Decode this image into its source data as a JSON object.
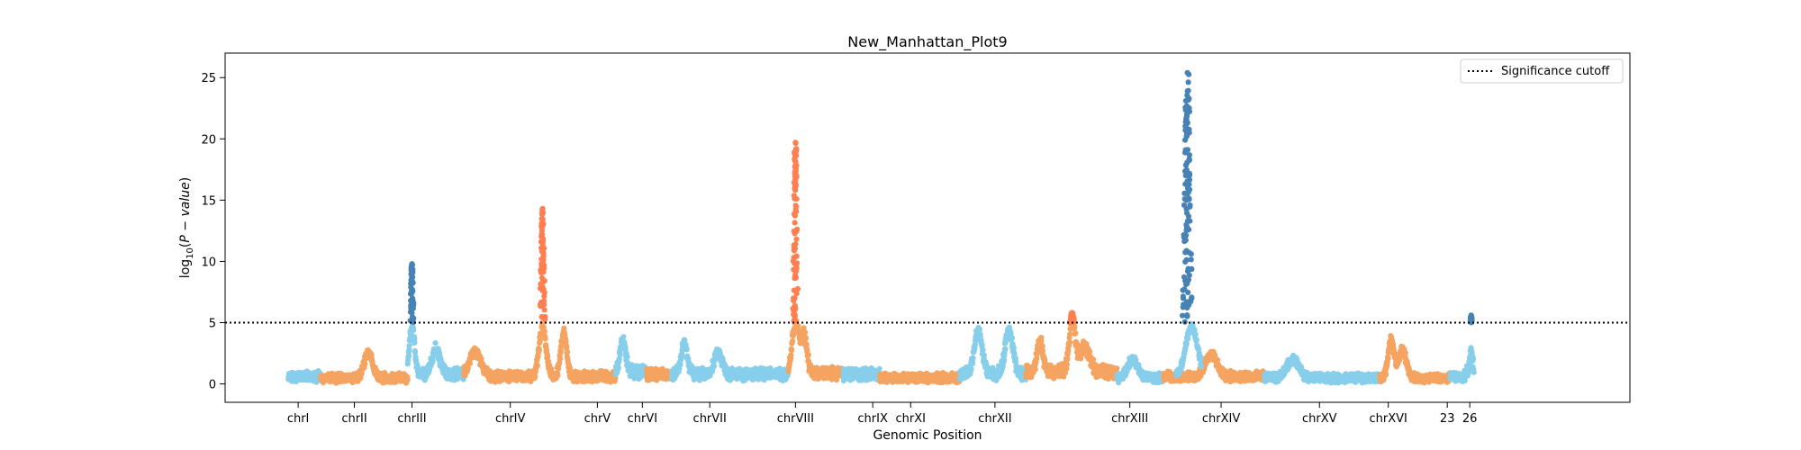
{
  "chart_data": {
    "type": "scatter",
    "title": "New_Manhattan_Plot9",
    "xlabel": "Genomic Position",
    "ylabel": "log10(P - value)",
    "ylim": [
      -1.5,
      27
    ],
    "yticks": [
      0,
      5,
      10,
      15,
      20,
      25
    ],
    "grid": false,
    "legend": {
      "position": "top-right",
      "entries": [
        "Significance cutoff"
      ]
    },
    "significance_cutoff": 5,
    "colors": {
      "light_blue": "#87ceeb",
      "sandy_orange": "#f4a460",
      "steel_blue": "#4682b4",
      "coral": "#ff7f50",
      "cutoff_line": "#000000"
    },
    "x_range": [
      0,
      1000
    ],
    "chromosomes": [
      {
        "label": "chrI",
        "start": 45,
        "end": 68,
        "center": 52,
        "color": "light_blue",
        "base": 0.6,
        "peaks": []
      },
      {
        "label": "chrII",
        "start": 68,
        "end": 130,
        "center": 92,
        "color": "sandy_orange",
        "base": 0.5,
        "peaks": [
          {
            "pos": 102,
            "height": 2.2,
            "width": 4
          }
        ]
      },
      {
        "label": "chrIII",
        "start": 130,
        "end": 170,
        "center": 133,
        "color": "light_blue",
        "base": 0.8,
        "peaks": [
          {
            "pos": 133,
            "height": 4.0,
            "width": 2.5,
            "sig_max": 9.8,
            "sig_color": "steel_blue"
          },
          {
            "pos": 150,
            "height": 2.0,
            "width": 4
          }
        ]
      },
      {
        "label": "chrIV",
        "start": 170,
        "end": 278,
        "center": 203,
        "color": "sandy_orange",
        "base": 0.6,
        "peaks": [
          {
            "pos": 178,
            "height": 2.0,
            "width": 6
          },
          {
            "pos": 226,
            "height": 4.0,
            "width": 3.5,
            "sig_max": 14.3,
            "sig_color": "coral"
          },
          {
            "pos": 241,
            "height": 3.5,
            "width": 3
          }
        ]
      },
      {
        "label": "chrV",
        "start": 278,
        "end": 300,
        "center": 265,
        "color": "light_blue",
        "base": 1.0,
        "peaks": [
          {
            "pos": 283,
            "height": 2.5,
            "width": 3
          }
        ]
      },
      {
        "label": "chrVI",
        "start": 300,
        "end": 318,
        "center": 297,
        "color": "sandy_orange",
        "base": 0.8,
        "peaks": []
      },
      {
        "label": "chrVII",
        "start": 318,
        "end": 401,
        "center": 345,
        "color": "light_blue",
        "base": 0.8,
        "peaks": [
          {
            "pos": 327,
            "height": 2.5,
            "width": 3
          },
          {
            "pos": 351,
            "height": 1.8,
            "width": 4
          }
        ]
      },
      {
        "label": "chrVIII",
        "start": 401,
        "end": 440,
        "center": 406,
        "color": "sandy_orange",
        "base": 0.9,
        "peaks": [
          {
            "pos": 406,
            "height": 4.0,
            "width": 3.5,
            "sig_max": 19.7,
            "sig_color": "coral"
          },
          {
            "pos": 412,
            "height": 3.0,
            "width": 3
          }
        ]
      },
      {
        "label": "chrIX",
        "start": 440,
        "end": 466,
        "center": 461,
        "color": "light_blue",
        "base": 0.8,
        "peaks": []
      },
      {
        "label": "chrX",
        "start": 466,
        "end": 523,
        "center": 483,
        "color": "sandy_orange",
        "base": 0.5,
        "peaks": []
      },
      {
        "label": "chrXI",
        "start": 523,
        "end": 570,
        "center": 488,
        "color": "light_blue",
        "base": 0.8,
        "peaks": [
          {
            "pos": 536,
            "height": 3.5,
            "width": 4
          },
          {
            "pos": 558,
            "height": 3.5,
            "width": 4
          }
        ]
      },
      {
        "label": "chrXII",
        "start": 570,
        "end": 635,
        "center": 548,
        "color": "sandy_orange",
        "base": 1.0,
        "peaks": [
          {
            "pos": 580,
            "height": 2.5,
            "width": 3
          },
          {
            "pos": 603,
            "height": 4.3,
            "width": 3,
            "sig_max": 5.8,
            "sig_color": "coral"
          },
          {
            "pos": 612,
            "height": 2.0,
            "width": 5
          }
        ]
      },
      {
        "label": "chrXIII",
        "start": 635,
        "end": 668,
        "center": 644,
        "color": "light_blue",
        "base": 0.5,
        "peaks": [
          {
            "pos": 646,
            "height": 1.5,
            "width": 5
          }
        ]
      },
      {
        "label": "chrXIV",
        "start": 668,
        "end": 740,
        "center": 709,
        "color": "sandy_orange",
        "base": 0.6,
        "peaks": [
          {
            "pos": 702,
            "height": 1.8,
            "width": 6
          }
        ]
      },
      {
        "label": "chrXV",
        "start": 740,
        "end": 822,
        "center": 779,
        "color": "light_blue",
        "base": 0.5,
        "peaks": [
          {
            "pos": 760,
            "height": 1.5,
            "width": 6
          }
        ]
      },
      {
        "label": "chrXVI",
        "start": 822,
        "end": 872,
        "center": 828,
        "color": "sandy_orange",
        "base": 0.5,
        "peaks": [
          {
            "pos": 830,
            "height": 3.0,
            "width": 3
          },
          {
            "pos": 838,
            "height": 2.2,
            "width": 4
          }
        ]
      },
      {
        "label": "23",
        "start": 872,
        "end": 884,
        "center": 870,
        "color": "light_blue",
        "base": 0.6,
        "peaks": []
      },
      {
        "label": "26",
        "start": 884,
        "end": 889,
        "center": 886,
        "color": "light_blue",
        "base": 1.0,
        "peaks": [
          {
            "pos": 887,
            "height": 1.5,
            "width": 1.5,
            "sig_max": 5.6,
            "sig_color": "steel_blue"
          }
        ]
      }
    ],
    "extra_signal": {
      "pos": 685,
      "height": 4.0,
      "width": 6,
      "sig_max": 25.4,
      "sig_color": "steel_blue",
      "base_color": "light_blue"
    }
  }
}
